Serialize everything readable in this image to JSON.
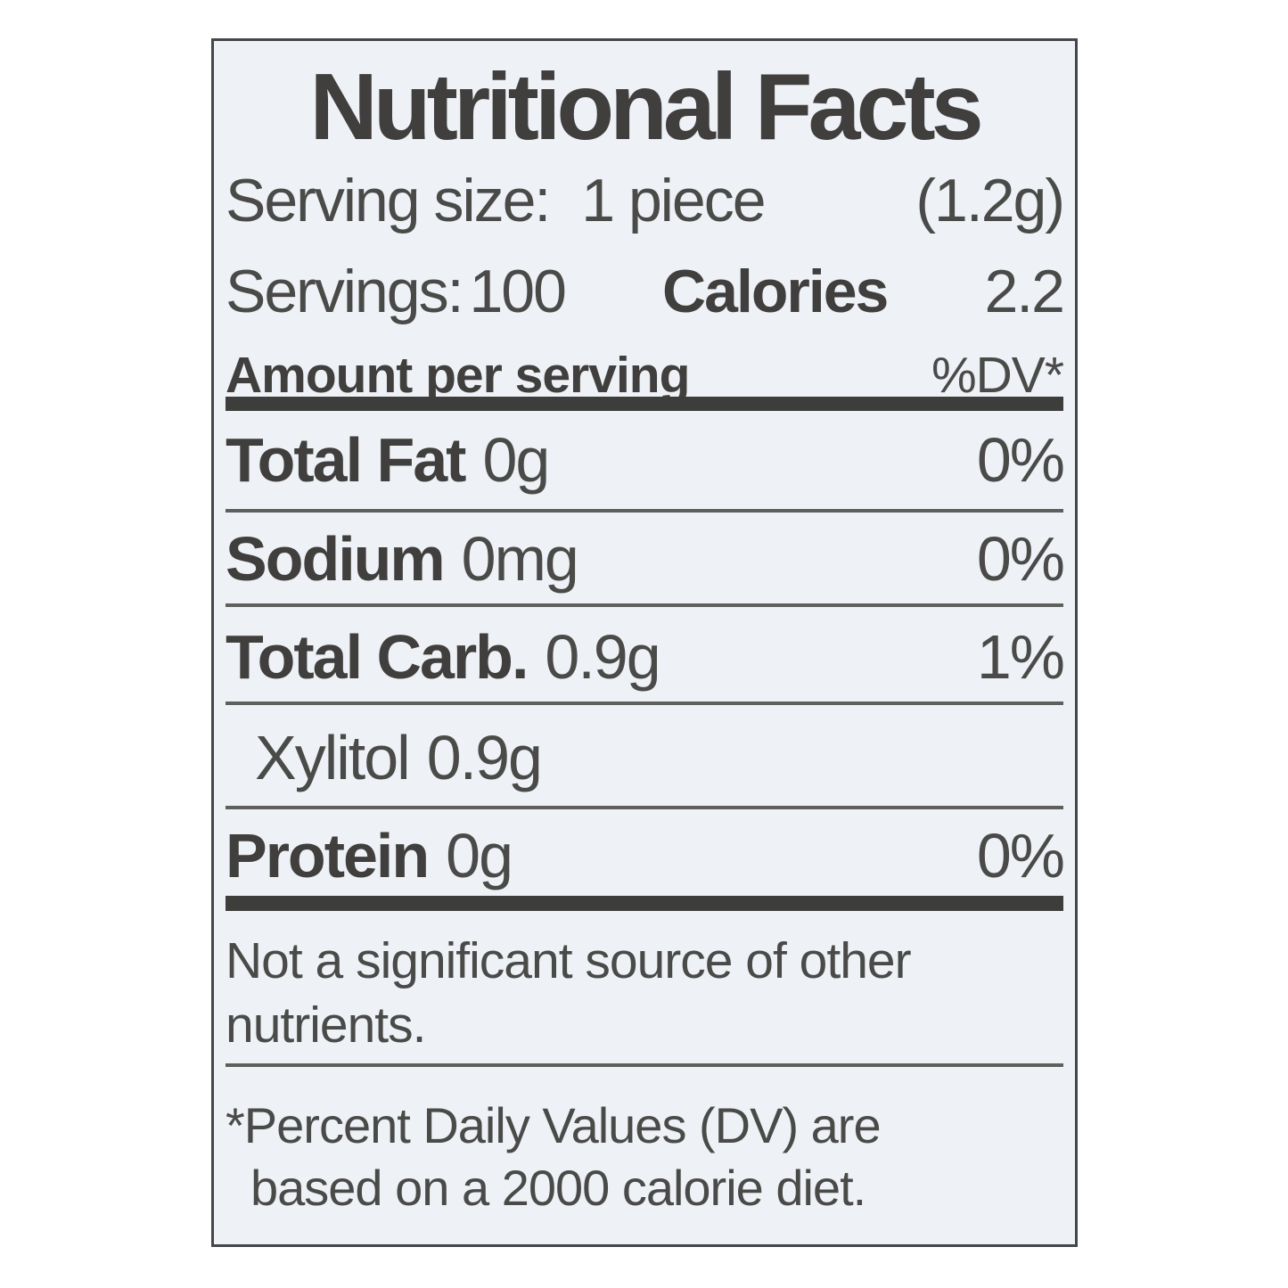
{
  "label": {
    "title": "Nutritional Facts",
    "serving": {
      "label": "Serving size:",
      "value": "1 piece",
      "weight": "(1.2g)"
    },
    "servings": {
      "label": "Servings:",
      "value": "100",
      "calories_label": "Calories",
      "calories_value": "2.2"
    },
    "header": {
      "amount": "Amount per serving",
      "dv": "%DV*"
    },
    "rows": [
      {
        "name": "Total Fat",
        "amount": "0g",
        "dv": "0%"
      },
      {
        "name": "Sodium",
        "amount": "0mg",
        "dv": "0%"
      },
      {
        "name": "Total Carb.",
        "amount": "0.9g",
        "dv": "1%"
      },
      {
        "name": "Xylitol",
        "amount": "0.9g",
        "dv": ""
      },
      {
        "name": "Protein",
        "amount": "0g",
        "dv": "0%"
      }
    ],
    "note": {
      "line1": "Not a significant source of other",
      "line2": "nutrients."
    },
    "footnote": {
      "line1": "*Percent Daily Values (DV) are",
      "line2": "based on a 2000 calorie diet."
    }
  },
  "colors": {
    "page-bg": "#ffffff",
    "card-bg": "#eef1f6",
    "text": "#4a4a48",
    "text-bold": "#403f3d",
    "bar": "#3d3d3b",
    "line": "#5f5f5d",
    "border": "#44464a"
  }
}
